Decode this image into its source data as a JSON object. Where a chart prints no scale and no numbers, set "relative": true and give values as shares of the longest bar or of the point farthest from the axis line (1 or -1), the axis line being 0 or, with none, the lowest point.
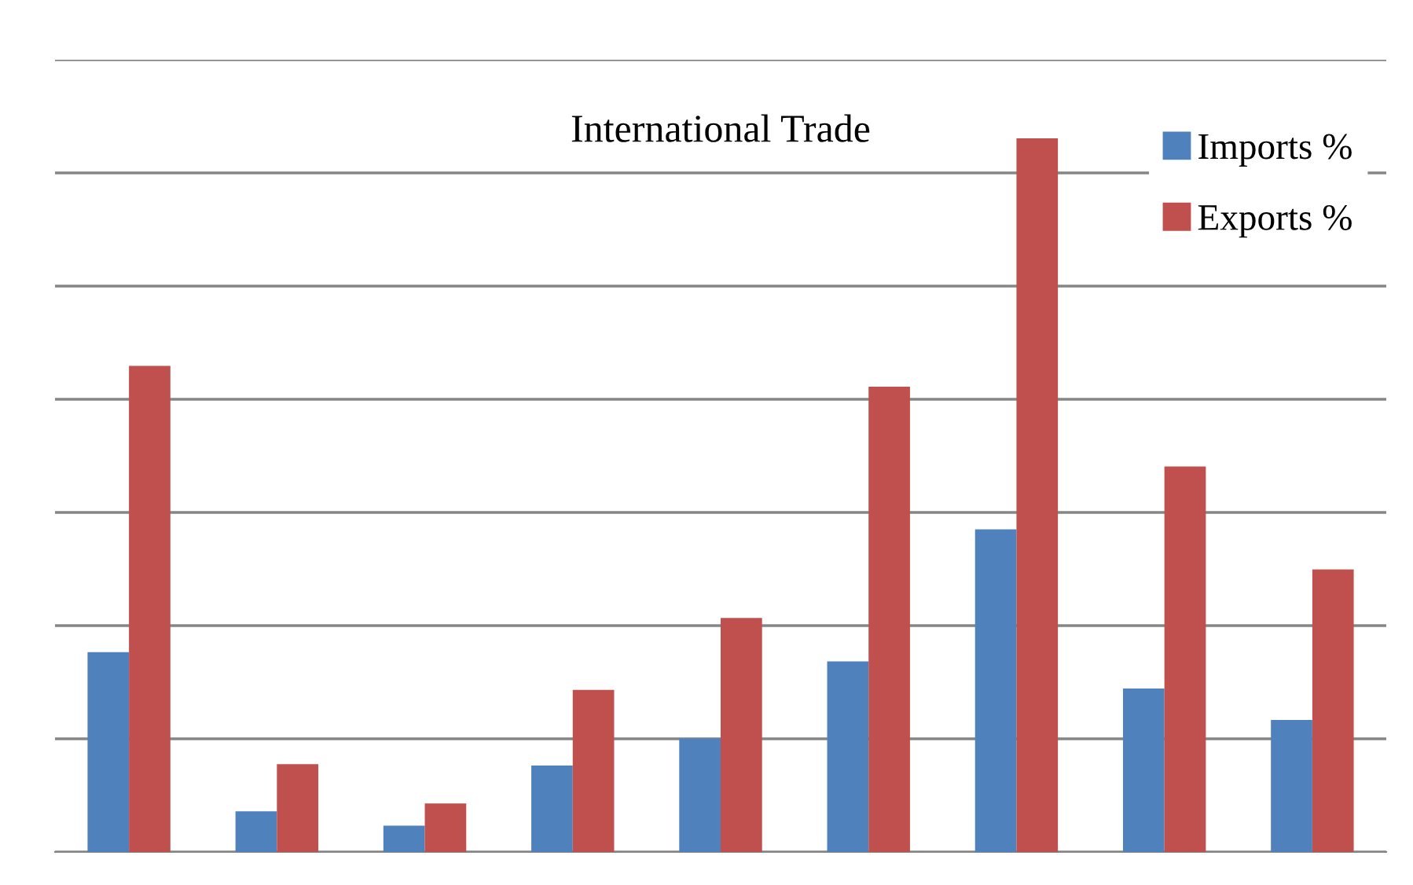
{
  "chart_data": {
    "type": "bar",
    "title": "International Trade",
    "relative": true,
    "grid": "y",
    "legend": "top right",
    "categories": [
      null,
      null,
      null,
      null,
      null,
      null,
      null,
      null,
      null
    ],
    "series": [
      {
        "name": "Imports %",
        "color": "#4f81bd",
        "values": [
          0.28,
          0.057,
          0.037,
          0.121,
          0.159,
          0.267,
          0.452,
          0.229,
          0.185
        ]
      },
      {
        "name": "Exports %",
        "color": "#c0504d",
        "values": [
          0.681,
          0.123,
          0.068,
          0.227,
          0.328,
          0.652,
          1,
          0.54,
          0.396
        ]
      }
    ]
  }
}
